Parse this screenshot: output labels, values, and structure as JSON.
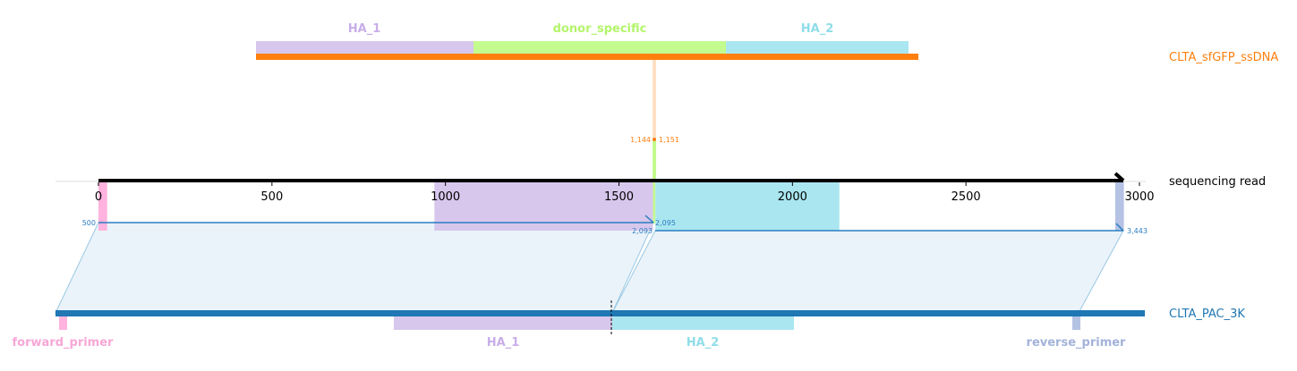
{
  "colors": {
    "ha1": "#d7c7ec",
    "ha1_text": "#c8aee8",
    "donor": "#c3fb8f",
    "donor_text": "#b3f56b",
    "ha2": "#aae6f0",
    "ha2_text": "#8fdde9",
    "primer_fwd": "#ffb3de",
    "primer_fwd_text": "#f7a7d6",
    "primer_rev": "#b4c2e4",
    "primer_rev_text": "#a3b3d9",
    "ssdna": "#ff7f0e",
    "pac": "#1f77b4",
    "read": "#000000",
    "link": "#2a7dc0",
    "link_fill": "#eaf3f9"
  },
  "tracks": {
    "ssdna": {
      "name": "CLTA_sfGFP_ssDNA"
    },
    "read": {
      "name": "sequencing read"
    },
    "pac": {
      "name": "CLTA_PAC_3K"
    }
  },
  "ssdna_features": [
    {
      "name": "HA_1",
      "color_key": "ha1"
    },
    {
      "name": "donor_specific",
      "color_key": "donor"
    },
    {
      "name": "HA_2",
      "color_key": "ha2"
    }
  ],
  "pac_features": [
    {
      "name": "forward_primer",
      "color_key": "primer_fwd"
    },
    {
      "name": "HA_1",
      "color_key": "ha1"
    },
    {
      "name": "HA_2",
      "color_key": "ha2"
    },
    {
      "name": "reverse_primer",
      "color_key": "primer_rev"
    }
  ],
  "axis": {
    "min": 0,
    "max": 3000,
    "ticks": [
      "0",
      "500",
      "1000",
      "1500",
      "2000",
      "2500",
      "3000"
    ]
  },
  "read_features": [
    {
      "name": "forward_primer",
      "start": 0,
      "end": 25,
      "color_key": "primer_fwd"
    },
    {
      "name": "HA_1",
      "start": 968,
      "end": 1598,
      "color_key": "ha1"
    },
    {
      "name": "donor_specific",
      "start": 1598,
      "end": 1605,
      "color_key": "donor"
    },
    {
      "name": "HA_2",
      "start": 1605,
      "end": 2135,
      "color_key": "ha2"
    },
    {
      "name": "reverse_primer",
      "start": 2930,
      "end": 2955,
      "color_key": "primer_rev"
    }
  ],
  "alignments": [
    {
      "left_label": "500",
      "right_label": "2,095"
    },
    {
      "left_label": "2,093",
      "right_label": "3,443"
    }
  ],
  "insertion": {
    "left_label": "1,144",
    "right_label": "1,151"
  }
}
